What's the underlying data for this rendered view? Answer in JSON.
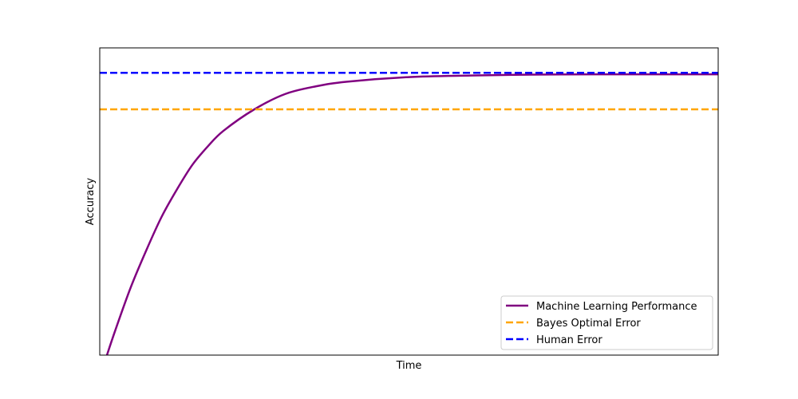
{
  "chart_data": {
    "type": "line",
    "title": "",
    "xlabel": "Time",
    "ylabel": "Accuracy",
    "xlim": [
      0,
      1
    ],
    "ylim": [
      0,
      1
    ],
    "x_ticks": [],
    "y_ticks": [],
    "grid": false,
    "legend_placement": "bottom-right",
    "series": [
      {
        "name": "Machine Learning Performance",
        "style": "solid",
        "color": "#800080",
        "x": [
          0.01,
          0.025,
          0.05,
          0.075,
          0.1,
          0.125,
          0.15,
          0.175,
          0.2,
          0.25,
          0.3,
          0.35,
          0.4,
          0.5,
          0.6,
          0.7,
          0.8,
          0.9,
          1.0
        ],
        "y": [
          -0.01,
          0.08,
          0.22,
          0.34,
          0.45,
          0.54,
          0.62,
          0.68,
          0.73,
          0.8,
          0.85,
          0.875,
          0.89,
          0.905,
          0.91,
          0.913,
          0.914,
          0.914,
          0.914
        ]
      },
      {
        "name": "Bayes Optimal Error",
        "style": "dashed",
        "color": "#FFA500",
        "x": [
          0,
          1
        ],
        "y": [
          0.8,
          0.8
        ]
      },
      {
        "name": "Human Error",
        "style": "dashed",
        "color": "#0000FF",
        "x": [
          0,
          1
        ],
        "y": [
          0.919,
          0.919
        ]
      }
    ]
  }
}
